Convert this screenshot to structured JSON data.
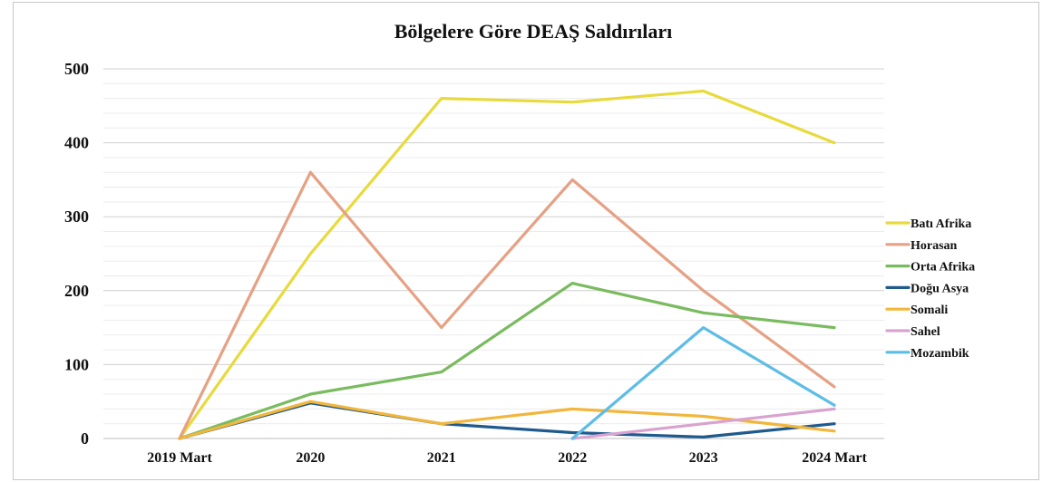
{
  "chart_data": {
    "type": "line",
    "title": "Bölgelere Göre DEAŞ Saldırıları",
    "xlabel": "",
    "ylabel": "",
    "categories": [
      "2019 Mart",
      "2020",
      "2021",
      "2022",
      "2023",
      "2024 Mart"
    ],
    "ylim": [
      0,
      500
    ],
    "yticks": [
      0,
      100,
      200,
      300,
      400,
      500
    ],
    "grid": true,
    "legend_position": "right",
    "series": [
      {
        "name": "Batı Afrika",
        "color": "#e8da3c",
        "values": [
          0,
          250,
          460,
          455,
          470,
          400
        ]
      },
      {
        "name": "Horasan",
        "color": "#e6a184",
        "values": [
          0,
          360,
          150,
          350,
          200,
          70
        ]
      },
      {
        "name": "Orta Afrika",
        "color": "#79bb5e",
        "values": [
          0,
          60,
          90,
          210,
          170,
          150
        ]
      },
      {
        "name": "Doğu Asya",
        "color": "#1f5a8e",
        "values": [
          0,
          48,
          20,
          8,
          2,
          20
        ]
      },
      {
        "name": "Somali",
        "color": "#f2b63a",
        "values": [
          0,
          50,
          20,
          40,
          30,
          10
        ]
      },
      {
        "name": "Sahel",
        "color": "#d9a3d0",
        "values": [
          null,
          null,
          null,
          0,
          20,
          40
        ]
      },
      {
        "name": "Mozambik",
        "color": "#5dbde6",
        "values": [
          null,
          null,
          null,
          0,
          150,
          45
        ]
      }
    ]
  }
}
